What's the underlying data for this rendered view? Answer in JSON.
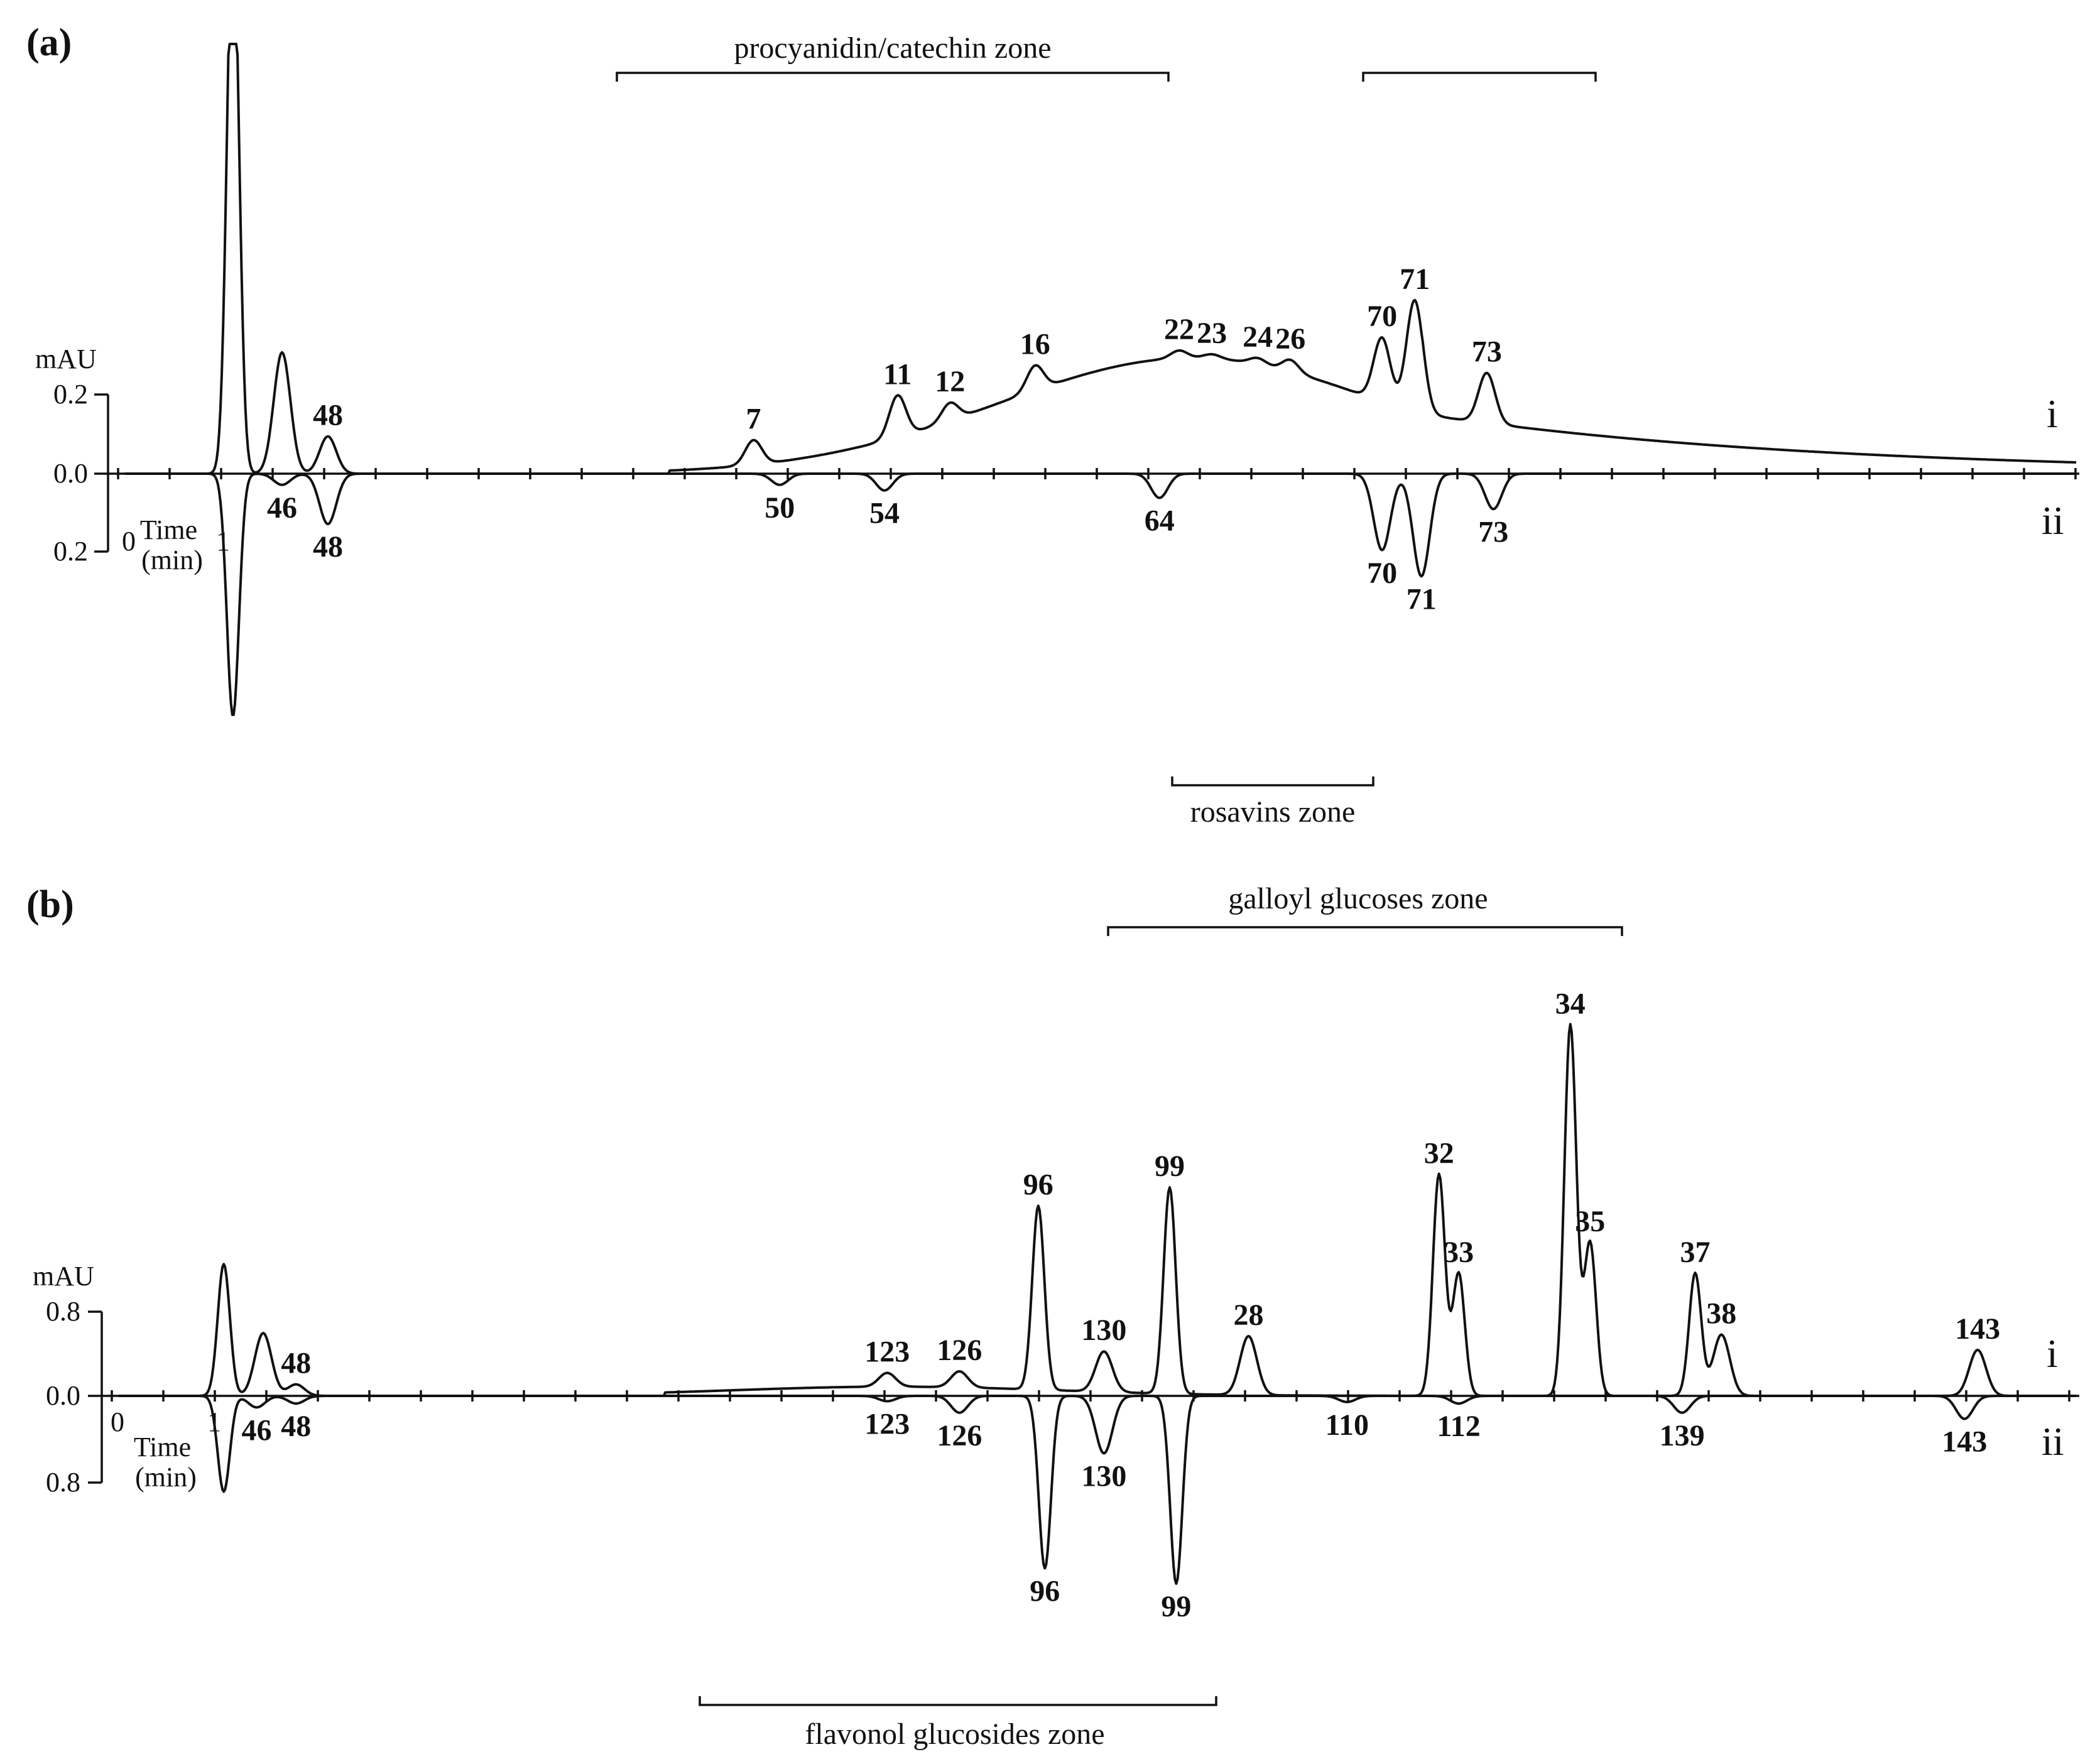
{
  "chart_data": [
    {
      "type": "line",
      "panel_label": "(a)",
      "ylabel": "mAU",
      "xlabel": "Time (min)",
      "xticks": [
        "0",
        "1"
      ],
      "yticks": {
        "i": "0.2",
        "zero": "0.0",
        "ii": "0.2"
      },
      "trace_labels": {
        "i": "i",
        "ii": "ii"
      },
      "zones": [
        {
          "name": "procyanidin/catechin zone",
          "trace": "i"
        },
        {
          "name": "",
          "trace": "i"
        },
        {
          "name": "rosavins zone",
          "trace": "ii"
        }
      ],
      "series": [
        {
          "name": "i",
          "peaks": [
            {
              "label": "",
              "x": 1.85,
              "y": 3.0
            },
            {
              "label": "",
              "x": 2.6,
              "y": 0.65
            },
            {
              "label": "48",
              "x": 3.3,
              "y": 0.2
            },
            {
              "label": "7",
              "x": 9.8,
              "y": 0.18
            },
            {
              "label": "11",
              "x": 12.0,
              "y": 0.42
            },
            {
              "label": "12",
              "x": 12.8,
              "y": 0.38
            },
            {
              "label": "16",
              "x": 14.1,
              "y": 0.58
            },
            {
              "label": "22",
              "x": 16.3,
              "y": 0.66
            },
            {
              "label": "23",
              "x": 16.8,
              "y": 0.64
            },
            {
              "label": "24",
              "x": 17.5,
              "y": 0.62
            },
            {
              "label": "26",
              "x": 18.0,
              "y": 0.61
            },
            {
              "label": "70",
              "x": 19.4,
              "y": 0.73
            },
            {
              "label": "71",
              "x": 19.9,
              "y": 0.93
            },
            {
              "label": "73",
              "x": 21.0,
              "y": 0.54
            }
          ]
        },
        {
          "name": "ii",
          "peaks": [
            {
              "label": "",
              "x": 1.85,
              "y": -1.3
            },
            {
              "label": "46",
              "x": 2.6,
              "y": -0.06
            },
            {
              "label": "48",
              "x": 3.3,
              "y": -0.27
            },
            {
              "label": "50",
              "x": 10.2,
              "y": -0.06
            },
            {
              "label": "54",
              "x": 11.8,
              "y": -0.09
            },
            {
              "label": "64",
              "x": 16.0,
              "y": -0.13
            },
            {
              "label": "70",
              "x": 19.4,
              "y": -0.41
            },
            {
              "label": "71",
              "x": 20.0,
              "y": -0.55
            },
            {
              "label": "73",
              "x": 21.1,
              "y": -0.19
            }
          ]
        }
      ]
    },
    {
      "type": "line",
      "panel_label": "(b)",
      "ylabel": "mAU",
      "xlabel": "Time (min)",
      "xticks": [
        "0",
        "1"
      ],
      "yticks": {
        "i": "0.8",
        "zero": "0.0",
        "ii": "0.8"
      },
      "trace_labels": {
        "i": "i",
        "ii": "ii"
      },
      "zones": [
        {
          "name": "galloyl glucoses zone",
          "trace": "i"
        },
        {
          "name": "flavonol glucosides zone",
          "trace": "ii"
        }
      ],
      "series": [
        {
          "name": "i",
          "peaks": [
            {
              "label": "",
              "x": 1.8,
              "y": 1.72
            },
            {
              "label": "",
              "x": 2.4,
              "y": 0.82
            },
            {
              "label": "48",
              "x": 2.9,
              "y": 0.15
            },
            {
              "label": "123",
              "x": 11.9,
              "y": 0.3
            },
            {
              "label": "126",
              "x": 13.0,
              "y": 0.32
            },
            {
              "label": "96",
              "x": 14.2,
              "y": 2.48
            },
            {
              "label": "130",
              "x": 15.2,
              "y": 0.58
            },
            {
              "label": "99",
              "x": 16.2,
              "y": 2.72
            },
            {
              "label": "28",
              "x": 17.4,
              "y": 0.78
            },
            {
              "label": "32",
              "x": 20.3,
              "y": 2.89
            },
            {
              "label": "33",
              "x": 20.6,
              "y": 1.6
            },
            {
              "label": "34",
              "x": 22.3,
              "y": 4.84
            },
            {
              "label": "35",
              "x": 22.6,
              "y": 2.0
            },
            {
              "label": "37",
              "x": 24.2,
              "y": 1.6
            },
            {
              "label": "38",
              "x": 24.6,
              "y": 0.8
            },
            {
              "label": "143",
              "x": 28.5,
              "y": 0.6
            }
          ]
        },
        {
          "name": "ii",
          "peaks": [
            {
              "label": "",
              "x": 1.8,
              "y": -1.25
            },
            {
              "label": "46",
              "x": 2.3,
              "y": -0.15
            },
            {
              "label": "48",
              "x": 2.9,
              "y": -0.1
            },
            {
              "label": "123",
              "x": 11.9,
              "y": -0.07
            },
            {
              "label": "126",
              "x": 13.0,
              "y": -0.22
            },
            {
              "label": "96",
              "x": 14.3,
              "y": -2.25
            },
            {
              "label": "130",
              "x": 15.2,
              "y": -0.75
            },
            {
              "label": "99",
              "x": 16.3,
              "y": -2.45
            },
            {
              "label": "110",
              "x": 18.9,
              "y": -0.08
            },
            {
              "label": "112",
              "x": 20.6,
              "y": -0.1
            },
            {
              "label": "139",
              "x": 24.0,
              "y": -0.22
            },
            {
              "label": "143",
              "x": 28.3,
              "y": -0.3
            }
          ]
        }
      ]
    }
  ]
}
